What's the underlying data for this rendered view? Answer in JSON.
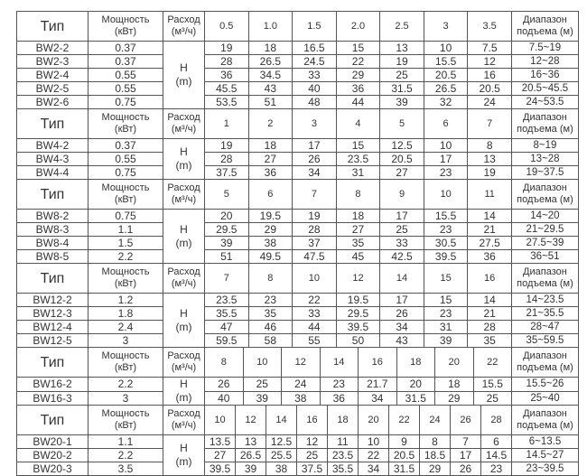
{
  "header_labels": {
    "type": "Тип",
    "power_1": "Мощность",
    "power_2": "(кВт)",
    "flow_1": "Расход",
    "flow_2": "(м³/ч)",
    "range_1": "Диапазон",
    "range_2": "подъема (м)",
    "head_1": "H",
    "head_2": "(m)"
  },
  "sections": [
    {
      "flows": [
        "0.5",
        "1.0",
        "1.5",
        "2.0",
        "2.5",
        "3",
        "3.5"
      ],
      "rows": [
        {
          "model": "BW2-2",
          "power": "0.37",
          "heads": [
            "19",
            "18",
            "16.5",
            "15",
            "13",
            "10",
            "7.5"
          ],
          "range": "7.5~19"
        },
        {
          "model": "BW2-3",
          "power": "0.37",
          "heads": [
            "28",
            "26.5",
            "24.5",
            "22",
            "19",
            "15.5",
            "12"
          ],
          "range": "12~28"
        },
        {
          "model": "BW2-4",
          "power": "0.55",
          "heads": [
            "36",
            "34.5",
            "33",
            "29",
            "25",
            "20.5",
            "16"
          ],
          "range": "16~36"
        },
        {
          "model": "BW2-5",
          "power": "0.55",
          "heads": [
            "45.5",
            "43",
            "40",
            "36",
            "31.5",
            "26.5",
            "20.5"
          ],
          "range": "20.5~45.5"
        },
        {
          "model": "BW2-6",
          "power": "0.75",
          "heads": [
            "53.5",
            "51",
            "48",
            "44",
            "39",
            "32",
            "24"
          ],
          "range": "24~53.5"
        }
      ]
    },
    {
      "flows": [
        "1",
        "2",
        "3",
        "4",
        "5",
        "6",
        "7"
      ],
      "rows": [
        {
          "model": "BW4-2",
          "power": "0.37",
          "heads": [
            "19",
            "18",
            "17",
            "15",
            "12.5",
            "10",
            "8"
          ],
          "range": "8~19"
        },
        {
          "model": "BW4-3",
          "power": "0.55",
          "heads": [
            "28",
            "27",
            "26",
            "23.5",
            "20.5",
            "17",
            "13"
          ],
          "range": "13~28"
        },
        {
          "model": "BW4-4",
          "power": "0.75",
          "heads": [
            "37.5",
            "36",
            "34",
            "31",
            "27",
            "23",
            "19"
          ],
          "range": "19~37.5"
        }
      ]
    },
    {
      "flows": [
        "5",
        "6",
        "7",
        "8",
        "9",
        "10",
        "11"
      ],
      "rows": [
        {
          "model": "BW8-2",
          "power": "0.75",
          "heads": [
            "20",
            "19.5",
            "19",
            "18",
            "17",
            "15.5",
            "14"
          ],
          "range": "14~20"
        },
        {
          "model": "BW8-3",
          "power": "1.1",
          "heads": [
            "29.5",
            "29",
            "28",
            "27",
            "25",
            "23",
            "21"
          ],
          "range": "21~29.5"
        },
        {
          "model": "BW8-4",
          "power": "1.5",
          "heads": [
            "39",
            "38",
            "37",
            "35",
            "33",
            "30.5",
            "27.5"
          ],
          "range": "27.5~39"
        },
        {
          "model": "BW8-5",
          "power": "2.2",
          "heads": [
            "51",
            "49.5",
            "47.5",
            "45",
            "42.5",
            "39.5",
            "36"
          ],
          "range": "36~51"
        }
      ]
    },
    {
      "flows": [
        "7",
        "8",
        "10",
        "12",
        "14",
        "15",
        "16"
      ],
      "rows": [
        {
          "model": "BW12-2",
          "power": "1.2",
          "heads": [
            "23.5",
            "23",
            "22",
            "19.5",
            "17",
            "15",
            "14"
          ],
          "range": "14~23.5"
        },
        {
          "model": "BW12-3",
          "power": "1.8",
          "heads": [
            "35.5",
            "35",
            "33",
            "29.5",
            "26",
            "23",
            "21"
          ],
          "range": "21~35.5"
        },
        {
          "model": "BW12-4",
          "power": "2.4",
          "heads": [
            "47",
            "46",
            "44",
            "39.5",
            "34",
            "31",
            "28"
          ],
          "range": "28~47"
        },
        {
          "model": "BW12-5",
          "power": "3",
          "heads": [
            "59.5",
            "58",
            "55",
            "50",
            "43",
            "39",
            "35"
          ],
          "range": "35~59.5"
        }
      ]
    },
    {
      "flows": [
        "8",
        "10",
        "12",
        "14",
        "16",
        "18",
        "20",
        "22"
      ],
      "rows": [
        {
          "model": "BW16-2",
          "power": "2.2",
          "heads": [
            "26",
            "25",
            "24",
            "23",
            "21.7",
            "20",
            "18",
            "15.5"
          ],
          "range": "15.5~26"
        },
        {
          "model": "BW16-3",
          "power": "3",
          "heads": [
            "40",
            "39",
            "38",
            "36",
            "34",
            "31.5",
            "29",
            "25"
          ],
          "range": "25~40"
        }
      ]
    },
    {
      "flows": [
        "10",
        "12",
        "14",
        "16",
        "18",
        "20",
        "22",
        "24",
        "26",
        "28"
      ],
      "rows": [
        {
          "model": "BW20-1",
          "power": "1.1",
          "heads": [
            "13.5",
            "13",
            "12.5",
            "12",
            "11",
            "10",
            "9",
            "8",
            "7",
            "6"
          ],
          "range": "6~13.5"
        },
        {
          "model": "BW20-2",
          "power": "2.2",
          "heads": [
            "27",
            "26.5",
            "25.5",
            "25",
            "23.5",
            "22",
            "20.5",
            "18.5",
            "17",
            "14.5"
          ],
          "range": "14.5~27"
        },
        {
          "model": "BW20-3",
          "power": "3.5",
          "heads": [
            "39.5",
            "39",
            "38",
            "37.5",
            "35.5",
            "34",
            "31.5",
            "29",
            "26",
            "23"
          ],
          "range": "23~39.5"
        }
      ]
    }
  ]
}
